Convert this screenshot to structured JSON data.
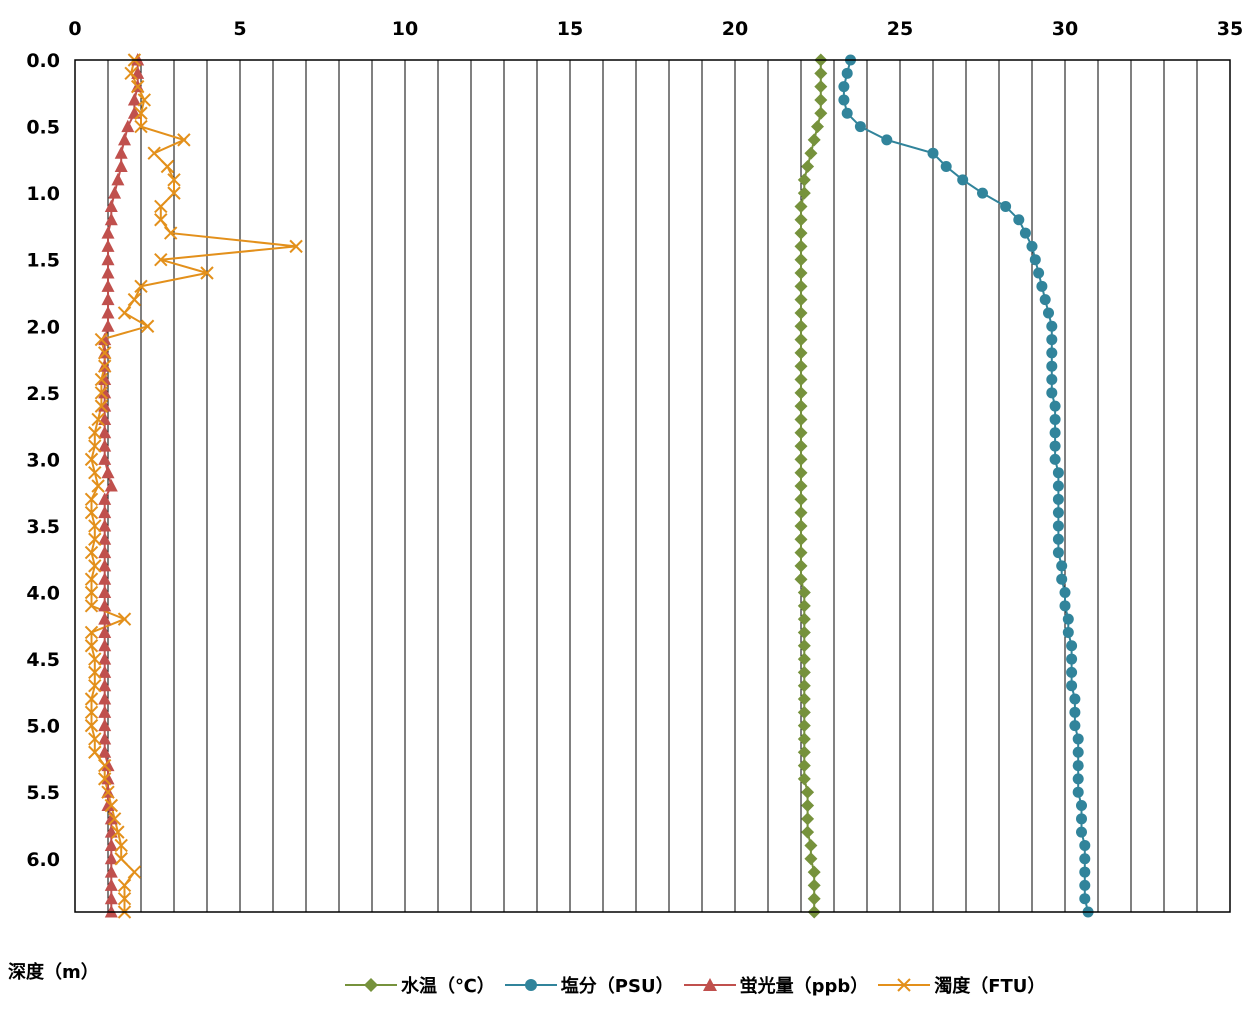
{
  "chart_data": {
    "type": "line",
    "orientation": "vertical-profile",
    "xlim": [
      0,
      35
    ],
    "xticks": [
      "0",
      "5",
      "10",
      "15",
      "20",
      "25",
      "30",
      "35"
    ],
    "ylim": [
      0.0,
      6.4
    ],
    "yticks": [
      "0.0",
      "0.5",
      "1.0",
      "1.5",
      "2.0",
      "2.5",
      "3.0",
      "3.5",
      "4.0",
      "4.5",
      "5.0",
      "5.5",
      "6.0"
    ],
    "ylabel": "深度（m）",
    "grid": "vertical",
    "legend_position": "bottom",
    "depths": [
      0.0,
      0.1,
      0.2,
      0.3,
      0.4,
      0.5,
      0.6,
      0.7,
      0.8,
      0.9,
      1.0,
      1.1,
      1.2,
      1.3,
      1.4,
      1.5,
      1.6,
      1.7,
      1.8,
      1.9,
      2.0,
      2.1,
      2.2,
      2.3,
      2.4,
      2.5,
      2.6,
      2.7,
      2.8,
      2.9,
      3.0,
      3.1,
      3.2,
      3.3,
      3.4,
      3.5,
      3.6,
      3.7,
      3.8,
      3.9,
      4.0,
      4.1,
      4.2,
      4.3,
      4.4,
      4.5,
      4.6,
      4.7,
      4.8,
      4.9,
      5.0,
      5.1,
      5.2,
      5.3,
      5.4,
      5.5,
      5.6,
      5.7,
      5.8,
      5.9,
      6.0,
      6.1,
      6.2,
      6.3,
      6.4
    ],
    "series": [
      {
        "name": "水温（℃）",
        "color": "#76923c",
        "marker": "diamond",
        "values": [
          22.6,
          22.6,
          22.6,
          22.6,
          22.6,
          22.5,
          22.4,
          22.3,
          22.2,
          22.1,
          22.1,
          22.0,
          22.0,
          22.0,
          22.0,
          22.0,
          22.0,
          22.0,
          22.0,
          22.0,
          22.0,
          22.0,
          22.0,
          22.0,
          22.0,
          22.0,
          22.0,
          22.0,
          22.0,
          22.0,
          22.0,
          22.0,
          22.0,
          22.0,
          22.0,
          22.0,
          22.0,
          22.0,
          22.0,
          22.0,
          22.1,
          22.1,
          22.1,
          22.1,
          22.1,
          22.1,
          22.1,
          22.1,
          22.1,
          22.1,
          22.1,
          22.1,
          22.1,
          22.1,
          22.1,
          22.2,
          22.2,
          22.2,
          22.2,
          22.3,
          22.3,
          22.4,
          22.4,
          22.4,
          22.4
        ]
      },
      {
        "name": "塩分（PSU）",
        "color": "#31849b",
        "marker": "circle",
        "values": [
          23.5,
          23.4,
          23.3,
          23.3,
          23.4,
          23.8,
          24.6,
          26.0,
          26.4,
          26.9,
          27.5,
          28.2,
          28.6,
          28.8,
          29.0,
          29.1,
          29.2,
          29.3,
          29.4,
          29.5,
          29.6,
          29.6,
          29.6,
          29.6,
          29.6,
          29.6,
          29.7,
          29.7,
          29.7,
          29.7,
          29.7,
          29.8,
          29.8,
          29.8,
          29.8,
          29.8,
          29.8,
          29.8,
          29.9,
          29.9,
          30.0,
          30.0,
          30.1,
          30.1,
          30.2,
          30.2,
          30.2,
          30.2,
          30.3,
          30.3,
          30.3,
          30.4,
          30.4,
          30.4,
          30.4,
          30.4,
          30.5,
          30.5,
          30.5,
          30.6,
          30.6,
          30.6,
          30.6,
          30.6,
          30.7
        ]
      },
      {
        "name": "蛍光量（ppb）",
        "color": "#c0504d",
        "marker": "triangle",
        "values": [
          1.9,
          1.9,
          1.9,
          1.8,
          1.8,
          1.6,
          1.5,
          1.4,
          1.4,
          1.3,
          1.2,
          1.1,
          1.1,
          1.0,
          1.0,
          1.0,
          1.0,
          1.0,
          1.0,
          1.0,
          1.0,
          0.9,
          0.9,
          0.9,
          0.9,
          0.9,
          0.9,
          0.9,
          0.9,
          0.9,
          0.9,
          1.0,
          1.1,
          0.9,
          0.9,
          0.9,
          0.9,
          0.9,
          0.9,
          0.9,
          0.9,
          0.9,
          0.9,
          0.9,
          0.9,
          0.9,
          0.9,
          0.9,
          0.9,
          0.9,
          0.9,
          0.9,
          0.9,
          1.0,
          1.0,
          1.0,
          1.0,
          1.1,
          1.1,
          1.1,
          1.1,
          1.1,
          1.1,
          1.1,
          1.1
        ]
      },
      {
        "name": "濁度（FTU）",
        "color": "#e3901b",
        "marker": "x",
        "values": [
          1.8,
          1.7,
          1.9,
          2.1,
          2.0,
          2.0,
          3.3,
          2.4,
          2.8,
          3.0,
          3.0,
          2.6,
          2.6,
          2.9,
          6.7,
          2.6,
          4.0,
          2.0,
          1.8,
          1.5,
          2.2,
          0.8,
          0.9,
          0.9,
          0.8,
          0.8,
          0.8,
          0.7,
          0.6,
          0.6,
          0.5,
          0.6,
          0.7,
          0.5,
          0.5,
          0.6,
          0.6,
          0.5,
          0.6,
          0.5,
          0.5,
          0.5,
          1.5,
          0.5,
          0.5,
          0.6,
          0.6,
          0.6,
          0.5,
          0.5,
          0.5,
          0.6,
          0.6,
          0.9,
          0.9,
          1.0,
          1.1,
          1.2,
          1.3,
          1.4,
          1.4,
          1.8,
          1.5,
          1.5,
          1.5
        ]
      }
    ]
  }
}
